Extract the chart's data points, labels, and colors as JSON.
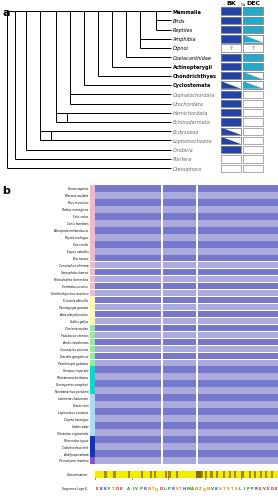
{
  "panel_a": {
    "taxa": [
      {
        "name": "Mammalia",
        "bold": true,
        "vertebrate": true,
        "bkca": "full",
        "dec": "full"
      },
      {
        "name": "Birds",
        "bold": false,
        "vertebrate": true,
        "bkca": "full",
        "dec": "full"
      },
      {
        "name": "Reptiles",
        "bold": false,
        "vertebrate": true,
        "bkca": "full",
        "dec": "full"
      },
      {
        "name": "Amphibia",
        "bold": false,
        "vertebrate": true,
        "bkca": "full",
        "dec": "half"
      },
      {
        "name": "Dipnoi",
        "bold": false,
        "vertebrate": true,
        "bkca": "question",
        "dec": "question"
      },
      {
        "name": "Coelacanthidae",
        "bold": false,
        "vertebrate": true,
        "bkca": "full",
        "dec": "full"
      },
      {
        "name": "Actinopterygii",
        "bold": true,
        "vertebrate": true,
        "bkca": "full",
        "dec": "full"
      },
      {
        "name": "Chondrichthyes",
        "bold": true,
        "vertebrate": true,
        "bkca": "full",
        "dec": "half"
      },
      {
        "name": "Cyclostomata",
        "bold": true,
        "vertebrate": true,
        "bkca": "half",
        "dec": "half"
      },
      {
        "name": "Cephalochordata",
        "bold": false,
        "vertebrate": false,
        "bkca": "full",
        "dec": "empty"
      },
      {
        "name": "Urochordata",
        "bold": false,
        "vertebrate": false,
        "bkca": "full",
        "dec": "empty"
      },
      {
        "name": "Hemichordata",
        "bold": false,
        "vertebrate": false,
        "bkca": "full",
        "dec": "empty"
      },
      {
        "name": "Echinodermata",
        "bold": false,
        "vertebrate": false,
        "bkca": "full",
        "dec": "empty"
      },
      {
        "name": "Ecdysozoa",
        "bold": false,
        "vertebrate": false,
        "bkca": "half",
        "dec": "empty"
      },
      {
        "name": "Lophotrochozoa",
        "bold": false,
        "vertebrate": false,
        "bkca": "half",
        "dec": "empty"
      },
      {
        "name": "Cnidaria",
        "bold": false,
        "vertebrate": false,
        "bkca": "full",
        "dec": "empty"
      },
      {
        "name": "Porifera",
        "bold": false,
        "vertebrate": false,
        "bkca": "empty",
        "dec": "empty"
      },
      {
        "name": "Ctenophora",
        "bold": false,
        "vertebrate": false,
        "bkca": "empty",
        "dec": "empty"
      }
    ],
    "bkca_color": "#2244aa",
    "dec_color": "#22aacc"
  },
  "panel_b": {
    "species": [
      {
        "name": "Homo sapiens",
        "group": "mammals"
      },
      {
        "name": "Macaca mulatta",
        "group": "mammals"
      },
      {
        "name": "Mus musculus",
        "group": "mammals"
      },
      {
        "name": "Rattus norvegicus",
        "group": "mammals"
      },
      {
        "name": "Felis catus",
        "group": "mammals"
      },
      {
        "name": "Canis familiaris",
        "group": "mammals"
      },
      {
        "name": "Ailuropoda melanoleuca",
        "group": "mammals"
      },
      {
        "name": "Myotis lucifugus",
        "group": "mammals"
      },
      {
        "name": "Sus scrofa",
        "group": "mammals"
      },
      {
        "name": "Equus caballus",
        "group": "mammals"
      },
      {
        "name": "Bos taurus",
        "group": "mammals"
      },
      {
        "name": "Conolophus africana",
        "group": "mammals"
      },
      {
        "name": "Sarcophilus harrisii",
        "group": "mammals"
      },
      {
        "name": "Monodelphis domestica",
        "group": "mammals"
      },
      {
        "name": "Vombatus ursinus",
        "group": "mammals"
      },
      {
        "name": "Ornithorhynchus anatinus",
        "group": "mammals"
      },
      {
        "name": "Ficedula albicollis",
        "group": "birds"
      },
      {
        "name": "Taeniopygia guttata",
        "group": "birds"
      },
      {
        "name": "Anas platyrhynchos",
        "group": "birds"
      },
      {
        "name": "Gallus gallus",
        "group": "birds"
      },
      {
        "name": "Chelonia mydas",
        "group": "reptiles"
      },
      {
        "name": "Paludiscus sinensis",
        "group": "reptiles"
      },
      {
        "name": "Anolis carolinensis",
        "group": "reptiles"
      },
      {
        "name": "Crocodylus porosus",
        "group": "reptiles"
      },
      {
        "name": "Gavialis gangeticus",
        "group": "reptiles"
      },
      {
        "name": "Pantheropis guttatus",
        "group": "reptiles"
      },
      {
        "name": "Xenopus tropicalis",
        "group": "amphibians"
      },
      {
        "name": "Rhinatrema bivittatus",
        "group": "amphibians"
      },
      {
        "name": "Geotrypetes seraphini",
        "group": "amphibians"
      },
      {
        "name": "Neobatrachus perobeni",
        "group": "amphibians"
      },
      {
        "name": "Latimeria chalumnae",
        "group": "bony_fish"
      },
      {
        "name": "Danio rerio",
        "group": "bony_fish"
      },
      {
        "name": "Lepisosteus oculatus",
        "group": "bony_fish"
      },
      {
        "name": "Clupea harengus",
        "group": "bony_fish"
      },
      {
        "name": "Salmo salar",
        "group": "bony_fish"
      },
      {
        "name": "Tetraodon nigroviridis",
        "group": "bony_fish"
      },
      {
        "name": "Rhincodon typus",
        "group": "chondrichthyes"
      },
      {
        "name": "Callorhinchus milii",
        "group": "chondrichthyes"
      },
      {
        "name": "Amblyraja radiata",
        "group": "chondrichthyes"
      },
      {
        "name": "Petromyzon marinus",
        "group": "cyclostomes"
      }
    ],
    "group_colors": {
      "mammals": "#f4b8c1",
      "birds": "#ffff99",
      "reptiles": "#90ee90",
      "amphibians": "#00ddcc",
      "bony_fish": "#aaddee",
      "chondrichthyes": "#1133bb",
      "cyclostomes": "#8855cc"
    },
    "align_bg": "#7777cc",
    "align_light": "#aaaadd",
    "cons_yellow": "#eeee00",
    "cons_brown": "#aa8800",
    "logo_seq": "EKKFTDE-AIVPRNTQDLPRSTHMANZQNVKSTSTSLIPPREVEDE",
    "logo_colors": {
      "E": "#cc2222",
      "K": "#2244cc",
      "R": "#2244cc",
      "H": "#2244cc",
      "D": "#cc2222",
      "F": "#228822",
      "I": "#228822",
      "V": "#228822",
      "L": "#228822",
      "A": "#228822",
      "M": "#228822",
      "W": "#228822",
      "P": "#228822",
      "C": "#228822",
      "G": "#228822",
      "Y": "#228822",
      "T": "#ee8800",
      "S": "#ee8800",
      "N": "#ee8800",
      "Q": "#ee8800",
      "Z": "#888888",
      "U": "#888888",
      "X": "#888888",
      "-": "#ffffff"
    }
  }
}
